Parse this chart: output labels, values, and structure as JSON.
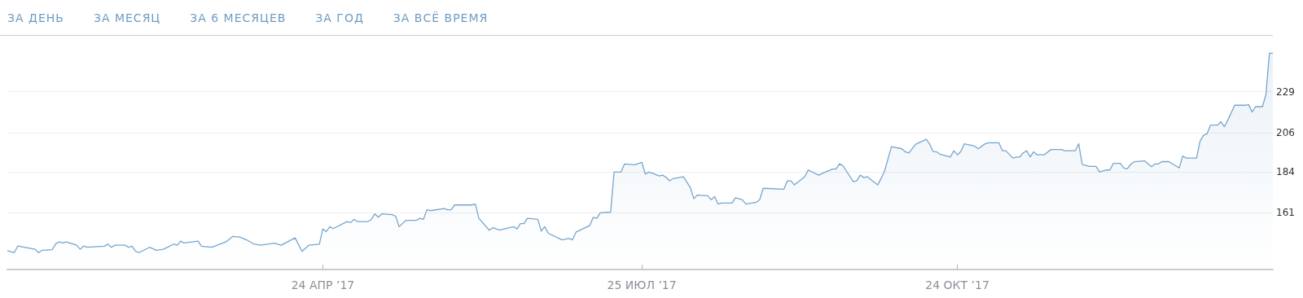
{
  "chart_data": {
    "type": "area",
    "color": "#78a5cc",
    "grid": "y",
    "annotations": [
      "ЗА ДЕНЬ",
      "ЗА МЕСЯЦ",
      "ЗА 6 МЕСЯЦЕВ",
      "ЗА ГОД",
      "ЗА ВСЁ ВРЕМЯ"
    ],
    "xlim": [
      "2017-01-23",
      "2018-01-23"
    ],
    "xticks": [
      {
        "value": "2017-04-24",
        "label": "24 АПР ’17"
      },
      {
        "value": "2017-07-25",
        "label": "25 ИЮЛ ’17"
      },
      {
        "value": "2017-10-24",
        "label": "24 ОКТ ’17"
      }
    ],
    "ylim": [
      129,
      260
    ],
    "yticks": [
      161,
      184,
      206,
      229
    ],
    "x": [
      "2017-01-23",
      "2017-01-25",
      "2017-01-26",
      "2017-01-31",
      "2017-02-01",
      "2017-02-02",
      "2017-02-05",
      "2017-02-06",
      "2017-02-07",
      "2017-02-08",
      "2017-02-09",
      "2017-02-12",
      "2017-02-13",
      "2017-02-14",
      "2017-02-15",
      "2017-02-20",
      "2017-02-21",
      "2017-02-22",
      "2017-02-23",
      "2017-02-26",
      "2017-02-27",
      "2017-02-28",
      "2017-03-01",
      "2017-03-02",
      "2017-03-05",
      "2017-03-07",
      "2017-03-09",
      "2017-03-12",
      "2017-03-13",
      "2017-03-14",
      "2017-03-15",
      "2017-03-19",
      "2017-03-20",
      "2017-03-23",
      "2017-03-27",
      "2017-03-29",
      "2017-03-31",
      "2017-04-02",
      "2017-04-04",
      "2017-04-06",
      "2017-04-10",
      "2017-04-12",
      "2017-04-16",
      "2017-04-18",
      "2017-04-20",
      "2017-04-23",
      "2017-04-24",
      "2017-04-25",
      "2017-04-26",
      "2017-04-27",
      "2017-05-01",
      "2017-05-02",
      "2017-05-03",
      "2017-05-04",
      "2017-05-07",
      "2017-05-08",
      "2017-05-09",
      "2017-05-10",
      "2017-05-11",
      "2017-05-14",
      "2017-05-15",
      "2017-05-16",
      "2017-05-18",
      "2017-05-21",
      "2017-05-22",
      "2017-05-23",
      "2017-05-24",
      "2017-05-25",
      "2017-05-29",
      "2017-05-30",
      "2017-05-31",
      "2017-06-01",
      "2017-06-06",
      "2017-06-07",
      "2017-06-08",
      "2017-06-11",
      "2017-06-12",
      "2017-06-14",
      "2017-06-18",
      "2017-06-19",
      "2017-06-20",
      "2017-06-21",
      "2017-06-22",
      "2017-06-25",
      "2017-06-26",
      "2017-06-27",
      "2017-06-28",
      "2017-07-02",
      "2017-07-04",
      "2017-07-05",
      "2017-07-06",
      "2017-07-10",
      "2017-07-11",
      "2017-07-12",
      "2017-07-13",
      "2017-07-16",
      "2017-07-17",
      "2017-07-19",
      "2017-07-20",
      "2017-07-23",
      "2017-07-25",
      "2017-07-26",
      "2017-07-27",
      "2017-07-28",
      "2017-07-30",
      "2017-07-31",
      "2017-08-01",
      "2017-08-02",
      "2017-08-03",
      "2017-08-06",
      "2017-08-08",
      "2017-08-09",
      "2017-08-10",
      "2017-08-13",
      "2017-08-14",
      "2017-08-15",
      "2017-08-16",
      "2017-08-17",
      "2017-08-20",
      "2017-08-21",
      "2017-08-23",
      "2017-08-24",
      "2017-08-27",
      "2017-08-28",
      "2017-08-29",
      "2017-09-04",
      "2017-09-05",
      "2017-09-06",
      "2017-09-07",
      "2017-09-10",
      "2017-09-11",
      "2017-09-14",
      "2017-09-16",
      "2017-09-18",
      "2017-09-19",
      "2017-09-20",
      "2017-09-21",
      "2017-09-24",
      "2017-09-25",
      "2017-09-26",
      "2017-09-27",
      "2017-09-28",
      "2017-10-01",
      "2017-10-02",
      "2017-10-03",
      "2017-10-05",
      "2017-10-08",
      "2017-10-09",
      "2017-10-10",
      "2017-10-12",
      "2017-10-15",
      "2017-10-16",
      "2017-10-17",
      "2017-10-18",
      "2017-10-19",
      "2017-10-22",
      "2017-10-23",
      "2017-10-24",
      "2017-10-25",
      "2017-10-26",
      "2017-10-29",
      "2017-10-30",
      "2017-11-01",
      "2017-11-02",
      "2017-11-05",
      "2017-11-06",
      "2017-11-07",
      "2017-11-09",
      "2017-11-10",
      "2017-11-11",
      "2017-11-12",
      "2017-11-13",
      "2017-11-14",
      "2017-11-15",
      "2017-11-16",
      "2017-11-18",
      "2017-11-20",
      "2017-11-23",
      "2017-11-24",
      "2017-11-27",
      "2017-11-28",
      "2017-11-29",
      "2017-12-01",
      "2017-12-03",
      "2017-12-04",
      "2017-12-06",
      "2017-12-07",
      "2017-12-08",
      "2017-12-10",
      "2017-12-11",
      "2017-12-12",
      "2017-12-13",
      "2017-12-14",
      "2017-12-17",
      "2017-12-19",
      "2017-12-20",
      "2017-12-21",
      "2017-12-22",
      "2017-12-24",
      "2017-12-26",
      "2017-12-27",
      "2017-12-28",
      "2017-12-29",
      "2018-01-01",
      "2018-01-02",
      "2018-01-03",
      "2018-01-04",
      "2018-01-05",
      "2018-01-07",
      "2018-01-08",
      "2018-01-09",
      "2018-01-10",
      "2018-01-12",
      "2018-01-15",
      "2018-01-16",
      "2018-01-17",
      "2018-01-18",
      "2018-01-20",
      "2018-01-21",
      "2018-01-22",
      "2018-01-23"
    ],
    "values": [
      139.6,
      138.5,
      142.2,
      140.4,
      138.5,
      139.8,
      140.2,
      143.6,
      144.5,
      143.9,
      144.5,
      142.7,
      140.4,
      142.2,
      141.5,
      142.1,
      143.3,
      141.5,
      142.7,
      142.7,
      141.5,
      142.1,
      139.2,
      138.5,
      141.5,
      139.8,
      140.4,
      143.3,
      142.7,
      145,
      143.9,
      145,
      142.1,
      141.5,
      144.5,
      147.6,
      147.3,
      145.7,
      143.4,
      142.7,
      143.8,
      142.7,
      146.8,
      139.2,
      142.7,
      143.3,
      151.8,
      150.3,
      153.1,
      152,
      156,
      155.4,
      157.2,
      156,
      156,
      157.2,
      160.3,
      158.4,
      160.3,
      159.9,
      159,
      153.1,
      156.7,
      156.7,
      157.8,
      157.2,
      162.6,
      162.1,
      163.3,
      162.6,
      162.6,
      165.3,
      165.3,
      165.8,
      157.8,
      151.1,
      152.5,
      151.2,
      153.1,
      151.8,
      154.8,
      154.8,
      157.8,
      157.2,
      150.6,
      153.1,
      149.4,
      145.7,
      146.5,
      145.7,
      150,
      153.8,
      158.4,
      157.8,
      160.9,
      161.3,
      183.8,
      183.8,
      188.4,
      187.9,
      189.3,
      182.7,
      183.8,
      183.2,
      181.6,
      182.1,
      180.9,
      178.9,
      180.1,
      181.2,
      175.1,
      168.8,
      170.9,
      170.5,
      168.2,
      170,
      165.8,
      166.4,
      166.4,
      169.4,
      168.2,
      165.8,
      166.8,
      168.3,
      174.7,
      174.2,
      178.9,
      178.9,
      176.6,
      181.2,
      185,
      182.1,
      183.9,
      185.5,
      185.5,
      188.5,
      187.4,
      178.4,
      178.9,
      182.1,
      180.7,
      181.2,
      176.6,
      180.1,
      184.4,
      198.1,
      196.9,
      195.2,
      194.6,
      199.5,
      202.2,
      199.7,
      195.4,
      195.2,
      193.9,
      192.3,
      195.8,
      193.5,
      195.4,
      199.7,
      198.4,
      196.9,
      199.7,
      200.3,
      200.3,
      195.8,
      195.8,
      191.7,
      192.3,
      192.3,
      194.6,
      195.8,
      192.3,
      195.2,
      193.5,
      193.5,
      196.5,
      196.5,
      195.8,
      195.8,
      199.8,
      188.2,
      187,
      187,
      183.9,
      185,
      185,
      188.7,
      188.7,
      186.1,
      185.6,
      188.2,
      189.6,
      190.1,
      186.8,
      188.4,
      188.4,
      189.7,
      189.7,
      187.3,
      186.2,
      192.9,
      191.7,
      191.7,
      201.2,
      204.5,
      205.3,
      210.2,
      210.2,
      212.2,
      209.3,
      213,
      221.4,
      221.4,
      221.8,
      217.6,
      220.6,
      220.6,
      227.5,
      250.7,
      250.7
    ]
  }
}
